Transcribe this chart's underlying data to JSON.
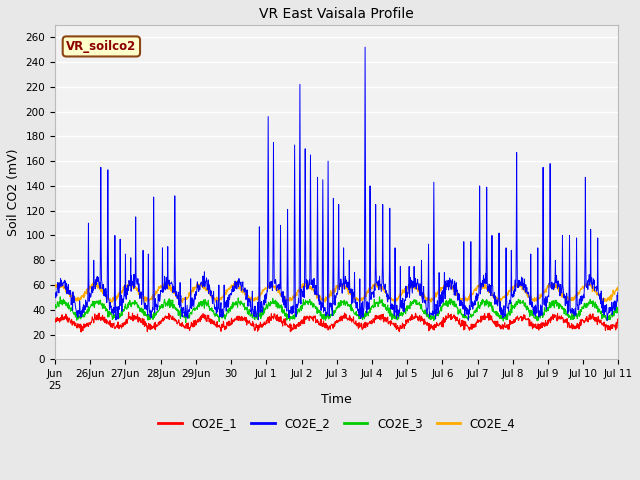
{
  "title": "VR East Vaisala Profile",
  "ylabel": "Soil CO2 (mV)",
  "xlabel": "Time",
  "annotation": "VR_soilco2",
  "ylim": [
    0,
    270
  ],
  "yticks": [
    0,
    20,
    40,
    60,
    80,
    100,
    120,
    140,
    160,
    180,
    200,
    220,
    240,
    260
  ],
  "legend_labels": [
    "CO2E_1",
    "CO2E_2",
    "CO2E_3",
    "CO2E_4"
  ],
  "line_colors": [
    "#ff0000",
    "#0000ff",
    "#00cc00",
    "#ffaa00"
  ],
  "background_color": "#e8e8e8",
  "plot_bg_color": "#f2f2f2",
  "xtick_labels": [
    "Jun\n25",
    "26Jun",
    "27Jun",
    "28Jun",
    "29Jun",
    "30",
    "Jul 1",
    "Jul 2",
    "Jul 3",
    "Jul 4",
    "Jul 5",
    "Jul 6",
    "Jul 7",
    "Jul 8",
    "Jul 9",
    "Jul 10",
    "Jul 11"
  ],
  "n_points": 1600,
  "date_range_days": 16
}
